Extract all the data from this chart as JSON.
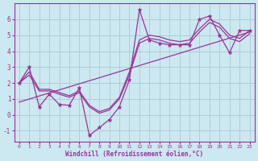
{
  "xlabel": "Windchill (Refroidissement éolien,°C)",
  "bg_color": "#cce8f0",
  "line_color": "#993399",
  "grid_color": "#b0cdd8",
  "xlim": [
    -0.5,
    23.5
  ],
  "ylim": [
    -1.7,
    7.0
  ],
  "yticks": [
    -1,
    0,
    1,
    2,
    3,
    4,
    5,
    6
  ],
  "xticks": [
    0,
    1,
    2,
    3,
    4,
    5,
    6,
    7,
    8,
    9,
    10,
    11,
    12,
    13,
    14,
    15,
    16,
    17,
    18,
    19,
    20,
    21,
    22,
    23
  ],
  "main_x": [
    0,
    1,
    2,
    3,
    4,
    5,
    6,
    7,
    8,
    9,
    10,
    11,
    12,
    13,
    14,
    15,
    16,
    17,
    18,
    19,
    20,
    21,
    22,
    23
  ],
  "main_y": [
    2.0,
    3.0,
    0.5,
    1.3,
    0.65,
    0.6,
    1.7,
    -1.3,
    -0.8,
    -0.3,
    0.5,
    2.2,
    6.6,
    4.7,
    4.5,
    4.4,
    4.4,
    4.4,
    6.0,
    6.2,
    5.0,
    3.9,
    5.3,
    5.3
  ],
  "trend_x": [
    0,
    23
  ],
  "trend_y": [
    0.8,
    5.2
  ],
  "smooth1_x": [
    0,
    1,
    2,
    3,
    4,
    5,
    6,
    7,
    8,
    9,
    10,
    11,
    12,
    13,
    14,
    15,
    16,
    17,
    18,
    19,
    20,
    21,
    22,
    23
  ],
  "smooth1_y": [
    2.0,
    2.5,
    1.5,
    1.5,
    1.3,
    1.1,
    1.4,
    0.5,
    0.1,
    0.3,
    1.0,
    2.5,
    4.5,
    4.8,
    4.7,
    4.5,
    4.4,
    4.5,
    5.2,
    5.8,
    5.5,
    4.8,
    4.6,
    5.1
  ],
  "smooth2_x": [
    0,
    1,
    2,
    3,
    4,
    5,
    6,
    7,
    8,
    9,
    10,
    11,
    12,
    13,
    14,
    15,
    16,
    17,
    18,
    19,
    20,
    21,
    22,
    23
  ],
  "smooth2_y": [
    2.0,
    2.7,
    1.6,
    1.6,
    1.4,
    1.2,
    1.5,
    0.6,
    0.2,
    0.4,
    1.1,
    2.7,
    4.7,
    5.0,
    4.9,
    4.7,
    4.6,
    4.7,
    5.4,
    6.0,
    5.7,
    5.0,
    4.8,
    5.3
  ]
}
